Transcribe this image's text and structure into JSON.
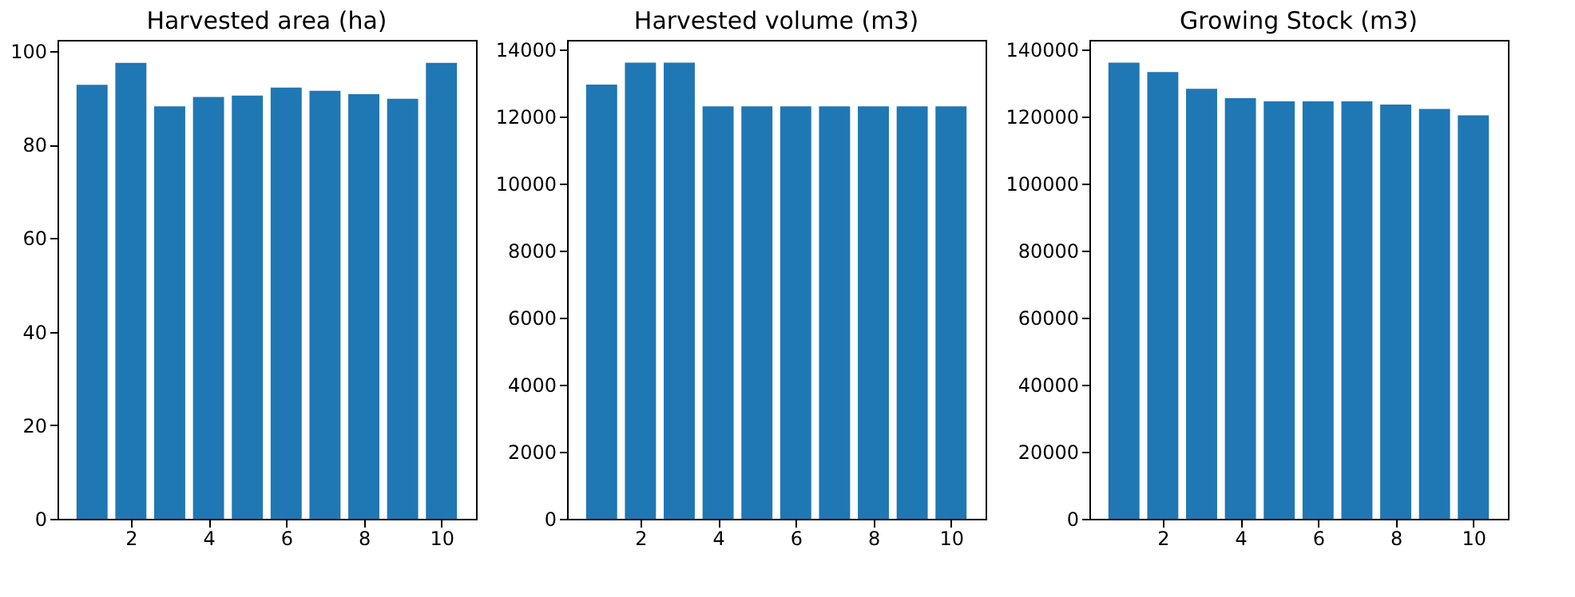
{
  "chart_data": [
    {
      "type": "bar",
      "title": "Harvested area (ha)",
      "x": [
        1,
        2,
        3,
        4,
        5,
        6,
        7,
        8,
        9,
        10
      ],
      "values": [
        92.8,
        97.5,
        88.2,
        90.2,
        90.5,
        92.2,
        91.5,
        90.8,
        89.8,
        97.5
      ],
      "color": "#1f77b4",
      "xlim": [
        0.11,
        10.89
      ],
      "xticks": [
        2,
        4,
        6,
        8,
        10
      ],
      "ylim": [
        0,
        102.4
      ],
      "yticks": [
        0,
        20,
        40,
        60,
        80,
        100
      ],
      "grid": false
    },
    {
      "type": "bar",
      "title": "Harvested volume (m3)",
      "x": [
        1,
        2,
        3,
        4,
        5,
        6,
        7,
        8,
        9,
        10
      ],
      "values": [
        12950,
        13600,
        13600,
        12300,
        12300,
        12300,
        12300,
        12300,
        12300,
        12300
      ],
      "color": "#1f77b4",
      "xlim": [
        0.11,
        10.89
      ],
      "xticks": [
        2,
        4,
        6,
        8,
        10
      ],
      "ylim": [
        0,
        14280
      ],
      "yticks": [
        0,
        2000,
        4000,
        6000,
        8000,
        10000,
        12000,
        14000
      ],
      "grid": false
    },
    {
      "type": "bar",
      "title": "Growing Stock (m3)",
      "x": [
        1,
        2,
        3,
        4,
        5,
        6,
        7,
        8,
        9,
        10
      ],
      "values": [
        136000,
        133200,
        128200,
        125400,
        124500,
        124500,
        124500,
        123500,
        122200,
        120300
      ],
      "color": "#1f77b4",
      "xlim": [
        0.11,
        10.89
      ],
      "xticks": [
        2,
        4,
        6,
        8,
        10
      ],
      "ylim": [
        0,
        142800
      ],
      "yticks": [
        0,
        20000,
        40000,
        60000,
        80000,
        100000,
        120000,
        140000
      ],
      "grid": false
    }
  ]
}
